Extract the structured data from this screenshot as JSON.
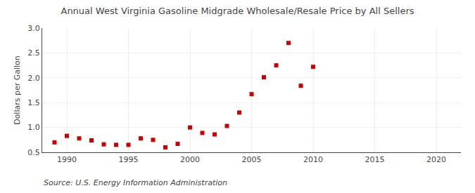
{
  "chart_data": {
    "type": "scatter",
    "title": "Annual West Virginia Gasoline Midgrade Wholesale/Resale Price by All Sellers",
    "ylabel": "Dollars per Gallon",
    "annotations": [
      "Source: U.S. Energy Information Administration"
    ],
    "x": [
      1989,
      1990,
      1991,
      1992,
      1993,
      1994,
      1995,
      1996,
      1997,
      1998,
      1999,
      2000,
      2001,
      2002,
      2003,
      2004,
      2005,
      2006,
      2007,
      2008,
      2009,
      2010
    ],
    "values": [
      0.7,
      0.83,
      0.78,
      0.74,
      0.66,
      0.65,
      0.65,
      0.78,
      0.75,
      0.6,
      0.67,
      1.0,
      0.89,
      0.86,
      1.03,
      1.3,
      1.67,
      2.01,
      2.25,
      2.7,
      1.84,
      2.22
    ],
    "color": "#cc0000",
    "marker": "square",
    "xlim": [
      1988,
      2022
    ],
    "ylim": [
      0.5,
      3.0
    ],
    "xticks": [
      1990,
      1995,
      2000,
      2005,
      2010,
      2015,
      2020
    ],
    "yticks": [
      0.5,
      {
        "value": 1.0,
        "label": "1.0"
      },
      1.5,
      {
        "value": 2.0,
        "label": "2.0"
      },
      2.5,
      {
        "value": 3.0,
        "label": "3.0"
      }
    ],
    "grid": true
  }
}
